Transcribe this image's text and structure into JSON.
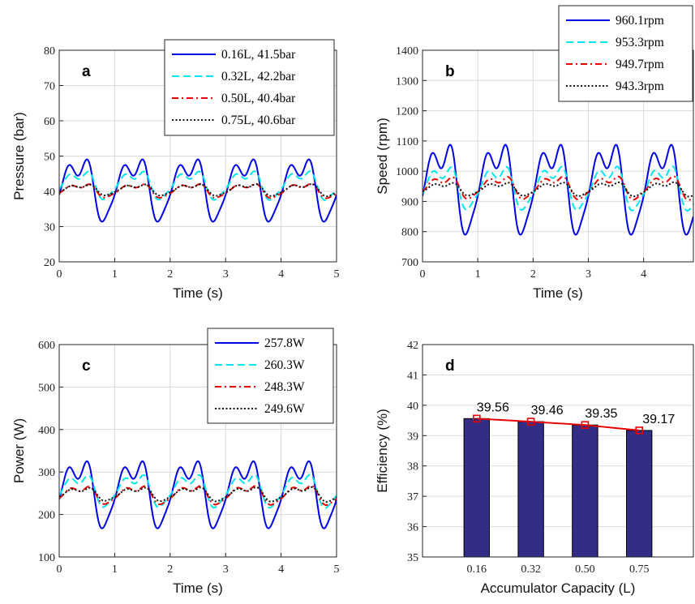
{
  "chart_data": [
    {
      "id": "a",
      "type": "line",
      "panel_label": "a",
      "xlabel": "Time (s)",
      "ylabel": "Pressure (bar)",
      "xlim": [
        0,
        5
      ],
      "ylim": [
        20,
        80
      ],
      "xticks": [
        "0",
        "1",
        "2",
        "3",
        "4",
        "5"
      ],
      "yticks": [
        "20",
        "30",
        "40",
        "50",
        "60",
        "70",
        "80"
      ],
      "grid": true,
      "legend_position": "top-right",
      "series": [
        {
          "name": "0.16L, 41.5bar",
          "color": "#0000e6",
          "dash": "solid",
          "mean": 41.5,
          "amplitude": 9.5,
          "phase": 0.0
        },
        {
          "name": "0.32L, 42.2bar",
          "color": "#00e5ee",
          "dash": "dashed",
          "mean": 42.2,
          "amplitude": 4.2,
          "phase": 0.02
        },
        {
          "name": "0.50L, 40.4bar",
          "color": "#e60000",
          "dash": "dashdot",
          "mean": 40.4,
          "amplitude": 2.0,
          "phase": 0.04
        },
        {
          "name": "0.75L, 40.6bar",
          "color": "#111111",
          "dash": "dotted",
          "mean": 40.6,
          "amplitude": 1.6,
          "phase": 0.05
        }
      ]
    },
    {
      "id": "b",
      "type": "line",
      "panel_label": "b",
      "xlabel": "Time (s)",
      "ylabel": "Speed (rpm)",
      "xlim": [
        0,
        4.9
      ],
      "ylim": [
        700,
        1400
      ],
      "xticks": [
        "0",
        "1",
        "2",
        "3",
        "4"
      ],
      "yticks": [
        "700",
        "800",
        "900",
        "1000",
        "1100",
        "1200",
        "1300",
        "1400"
      ],
      "grid": true,
      "legend_position": "top-right",
      "series": [
        {
          "name": "960.1rpm",
          "color": "#0000e6",
          "dash": "solid",
          "mean": 960.1,
          "amplitude": 160,
          "phase": 0.0
        },
        {
          "name": "953.3rpm",
          "color": "#00e5ee",
          "dash": "dashed",
          "mean": 953.3,
          "amplitude": 75,
          "phase": 0.02
        },
        {
          "name": "949.7rpm",
          "color": "#e60000",
          "dash": "dashdot",
          "mean": 949.7,
          "amplitude": 38,
          "phase": 0.04
        },
        {
          "name": "943.3rpm",
          "color": "#111111",
          "dash": "dotted",
          "mean": 943.3,
          "amplitude": 22,
          "phase": 0.05
        }
      ]
    },
    {
      "id": "c",
      "type": "line",
      "panel_label": "c",
      "xlabel": "Time (s)",
      "ylabel": "Power (W)",
      "xlim": [
        0,
        5
      ],
      "ylim": [
        100,
        600
      ],
      "xticks": [
        "0",
        "1",
        "2",
        "3",
        "4",
        "5"
      ],
      "yticks": [
        "100",
        "200",
        "300",
        "400",
        "500",
        "600"
      ],
      "grid": true,
      "legend_position": "top-right",
      "series": [
        {
          "name": "257.8W",
          "color": "#0000e6",
          "dash": "solid",
          "mean": 257.8,
          "amplitude": 85,
          "phase": 0.0
        },
        {
          "name": "260.3W",
          "color": "#00e5ee",
          "dash": "dashed",
          "mean": 260.3,
          "amplitude": 40,
          "phase": 0.02
        },
        {
          "name": "248.3W",
          "color": "#e60000",
          "dash": "dashdot",
          "mean": 248.3,
          "amplitude": 22,
          "phase": 0.04
        },
        {
          "name": "249.6W",
          "color": "#111111",
          "dash": "dotted",
          "mean": 249.6,
          "amplitude": 16,
          "phase": 0.05
        }
      ]
    },
    {
      "id": "d",
      "type": "bar",
      "panel_label": "d",
      "xlabel": "Accumulator Capacity (L)",
      "ylabel": "Efficiency (%)",
      "categories": [
        "0.16",
        "0.32",
        "0.50",
        "0.75"
      ],
      "values": [
        39.56,
        39.46,
        39.35,
        39.17
      ],
      "value_labels": [
        "39.56",
        "39.46",
        "39.35",
        "39.17"
      ],
      "ylim": [
        35,
        42
      ],
      "yticks": [
        "35",
        "36",
        "37",
        "38",
        "39",
        "40",
        "41",
        "42"
      ],
      "grid": true,
      "bar_color": "#332d85",
      "line_color": "#e60000"
    }
  ]
}
